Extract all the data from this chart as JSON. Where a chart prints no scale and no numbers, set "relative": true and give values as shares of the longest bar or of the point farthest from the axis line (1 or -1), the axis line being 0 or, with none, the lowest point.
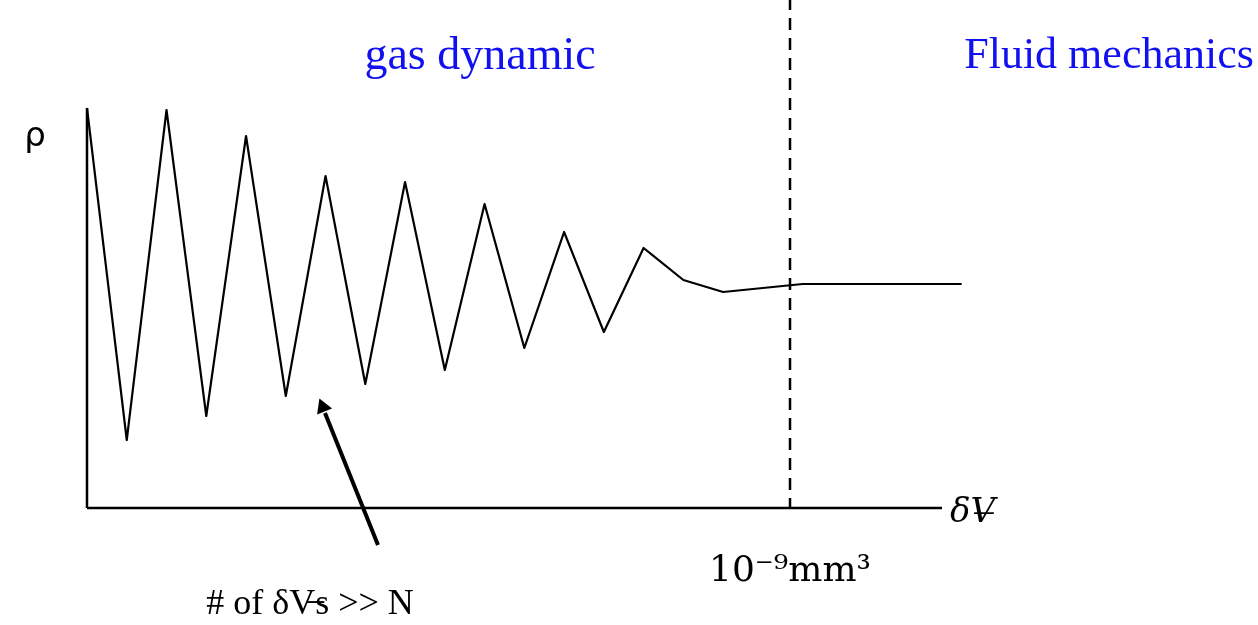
{
  "chart_data": {
    "type": "line",
    "relative": true,
    "line_style": "solid",
    "ylabel": "ρ",
    "xlabel": "δV̶",
    "categories": [
      null,
      null,
      null,
      null,
      null,
      null,
      null,
      null,
      null,
      null,
      null,
      null,
      null,
      null,
      null,
      null,
      null,
      null,
      null,
      null,
      null,
      null,
      null
    ],
    "series": [
      {
        "color": "#000000",
        "values": [
          1.0,
          0.17,
          0.995,
          0.23,
          0.93,
          0.28,
          0.83,
          0.31,
          0.815,
          0.345,
          0.76,
          0.4,
          0.69,
          0.44,
          0.65,
          0.57,
          0.54,
          0.55,
          0.56,
          0.56,
          0.56,
          0.56,
          0.56
        ]
      }
    ],
    "ref_lines": [
      {
        "axis": "x",
        "label": "10⁻⁹mm³",
        "line_style": "dashed",
        "color": "#000000"
      }
    ],
    "annotations": [
      "gas dynamic",
      "Fluid mechanics",
      "# of δV̶s >> N"
    ]
  }
}
